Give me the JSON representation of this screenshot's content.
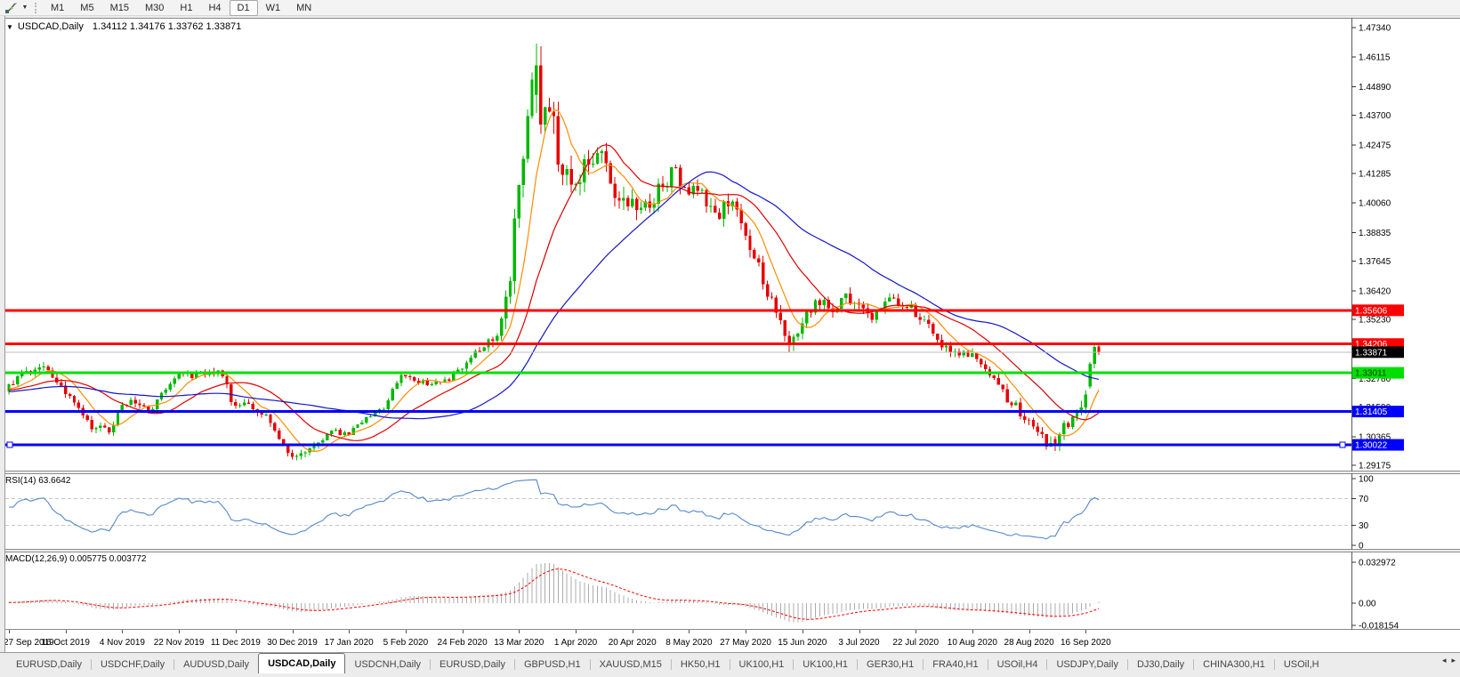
{
  "toolbar": {
    "timeframes": [
      {
        "label": "M1",
        "active": false
      },
      {
        "label": "M5",
        "active": false
      },
      {
        "label": "M15",
        "active": false
      },
      {
        "label": "M30",
        "active": false
      },
      {
        "label": "H1",
        "active": false
      },
      {
        "label": "H4",
        "active": false
      },
      {
        "label": "D1",
        "active": true
      },
      {
        "label": "W1",
        "active": false
      },
      {
        "label": "MN",
        "active": false
      }
    ]
  },
  "chart": {
    "title": "USDCAD,Daily",
    "ohlc": "1.34112 1.34176 1.33762 1.33871"
  },
  "price_axis": {
    "ticks": [
      "1.47340",
      "1.46115",
      "1.44890",
      "1.43700",
      "1.42475",
      "1.41285",
      "1.40060",
      "1.38835",
      "1.37645",
      "1.36420",
      "1.35230",
      "1.34005",
      "1.32780",
      "1.31590",
      "1.30365",
      "1.29175"
    ]
  },
  "levels": [
    {
      "name": "resistance-line-upper",
      "label": "1.35606",
      "value": 1.35606,
      "line_color": "#ff0000",
      "badge_bg": "#ff0000",
      "badge_fg": "#ffffff",
      "width": 3,
      "selected": false
    },
    {
      "name": "resistance-line-lower",
      "label": "1.34206",
      "value": 1.34206,
      "line_color": "#ff0000",
      "badge_bg": "#ff0000",
      "badge_fg": "#ffffff",
      "width": 3,
      "selected": false
    },
    {
      "name": "bid-price-line",
      "label": "1.33871",
      "value": 1.33871,
      "line_color": "#bdbdbd",
      "badge_bg": "#000000",
      "badge_fg": "#ffffff",
      "width": 1,
      "selected": false
    },
    {
      "name": "support-line-green",
      "label": "1.33011",
      "value": 1.33011,
      "line_color": "#00e000",
      "badge_bg": "#00e000",
      "badge_fg": "#003300",
      "width": 3,
      "selected": false
    },
    {
      "name": "support-line-mid",
      "label": "1.31405",
      "value": 1.31405,
      "line_color": "#0000ff",
      "badge_bg": "#0000ff",
      "badge_fg": "#ffffff",
      "width": 3,
      "selected": false
    },
    {
      "name": "support-line-low",
      "label": "1.30022",
      "value": 1.30022,
      "line_color": "#0000ff",
      "badge_bg": "#0000ff",
      "badge_fg": "#ffffff",
      "width": 3,
      "selected": true
    }
  ],
  "chart_data": {
    "type": "candlestick",
    "symbol": "USDCAD",
    "timeframe": "Daily",
    "y_axis": {
      "min": 1.29175,
      "max": 1.4734
    },
    "x_labels": [
      "27 Sep 2019",
      "16 Oct 2019",
      "4 Nov 2019",
      "22 Nov 2019",
      "11 Dec 2019",
      "30 Dec 2019",
      "17 Jan 2020",
      "5 Feb 2020",
      "24 Feb 2020",
      "13 Mar 2020",
      "1 Apr 2020",
      "20 Apr 2020",
      "8 May 2020",
      "27 May 2020",
      "15 Jun 2020",
      "3 Jul 2020",
      "22 Jul 2020",
      "10 Aug 2020",
      "28 Aug 2020",
      "16 Sep 2020"
    ],
    "bars_total": 251,
    "bars_per_label": 13,
    "current_bar": {
      "open": 1.34112,
      "high": 1.34176,
      "low": 1.33762,
      "close": 1.33871
    },
    "spike": {
      "bar": 121,
      "high": 1.4668
    },
    "trough": {
      "bar": 239,
      "low": 1.2994
    },
    "price_anchors": [
      [
        0,
        1.3235
      ],
      [
        4,
        1.329
      ],
      [
        8,
        1.332
      ],
      [
        13,
        1.324
      ],
      [
        17,
        1.313
      ],
      [
        20,
        1.307
      ],
      [
        24,
        1.3055
      ],
      [
        26,
        1.315
      ],
      [
        30,
        1.3185
      ],
      [
        33,
        1.3155
      ],
      [
        37,
        1.325
      ],
      [
        39,
        1.33
      ],
      [
        43,
        1.329
      ],
      [
        46,
        1.3295
      ],
      [
        49,
        1.33
      ],
      [
        52,
        1.318
      ],
      [
        56,
        1.3165
      ],
      [
        60,
        1.311
      ],
      [
        65,
        1.296
      ],
      [
        69,
        1.2985
      ],
      [
        72,
        1.3025
      ],
      [
        75,
        1.306
      ],
      [
        78,
        1.305
      ],
      [
        82,
        1.311
      ],
      [
        86,
        1.315
      ],
      [
        91,
        1.329
      ],
      [
        95,
        1.326
      ],
      [
        99,
        1.325
      ],
      [
        104,
        1.331
      ],
      [
        108,
        1.339
      ],
      [
        112,
        1.342
      ],
      [
        115,
        1.365
      ],
      [
        117,
        1.395
      ],
      [
        119,
        1.43
      ],
      [
        121,
        1.456
      ],
      [
        123,
        1.43
      ],
      [
        125,
        1.442
      ],
      [
        127,
        1.417
      ],
      [
        130,
        1.409
      ],
      [
        133,
        1.418
      ],
      [
        136,
        1.425
      ],
      [
        139,
        1.406
      ],
      [
        143,
        1.402
      ],
      [
        147,
        1.398
      ],
      [
        150,
        1.408
      ],
      [
        153,
        1.413
      ],
      [
        156,
        1.407
      ],
      [
        160,
        1.403
      ],
      [
        163,
        1.395
      ],
      [
        166,
        1.401
      ],
      [
        169,
        1.39
      ],
      [
        172,
        1.378
      ],
      [
        175,
        1.36
      ],
      [
        178,
        1.35
      ],
      [
        180,
        1.342
      ],
      [
        182,
        1.345
      ],
      [
        184,
        1.356
      ],
      [
        186,
        1.362
      ],
      [
        189,
        1.355
      ],
      [
        192,
        1.361
      ],
      [
        195,
        1.358
      ],
      [
        199,
        1.354
      ],
      [
        203,
        1.361
      ],
      [
        206,
        1.358
      ],
      [
        208,
        1.356
      ],
      [
        211,
        1.35
      ],
      [
        214,
        1.342
      ],
      [
        217,
        1.34
      ],
      [
        221,
        1.338
      ],
      [
        224,
        1.333
      ],
      [
        227,
        1.326
      ],
      [
        230,
        1.319
      ],
      [
        234,
        1.312
      ],
      [
        237,
        1.306
      ],
      [
        239,
        1.3005
      ],
      [
        241,
        1.303
      ],
      [
        243,
        1.309
      ],
      [
        245,
        1.313
      ],
      [
        247,
        1.317
      ],
      [
        249,
        1.323
      ],
      [
        250,
        1.3387
      ]
    ],
    "volatility_anchors": [
      [
        0,
        0.003
      ],
      [
        20,
        0.0032
      ],
      [
        40,
        0.0025
      ],
      [
        52,
        0.0028
      ],
      [
        65,
        0.003
      ],
      [
        78,
        0.0022
      ],
      [
        91,
        0.0022
      ],
      [
        104,
        0.0028
      ],
      [
        112,
        0.006
      ],
      [
        117,
        0.011
      ],
      [
        121,
        0.016
      ],
      [
        126,
        0.013
      ],
      [
        132,
        0.0095
      ],
      [
        140,
        0.0075
      ],
      [
        150,
        0.006
      ],
      [
        160,
        0.0055
      ],
      [
        170,
        0.006
      ],
      [
        180,
        0.0055
      ],
      [
        190,
        0.0045
      ],
      [
        200,
        0.004
      ],
      [
        210,
        0.0035
      ],
      [
        220,
        0.0035
      ],
      [
        232,
        0.004
      ],
      [
        241,
        0.0045
      ],
      [
        250,
        0.0045
      ]
    ],
    "up_color": "#00b800",
    "down_color": "#e60000",
    "moving_averages": [
      {
        "name": "ma-fast-line",
        "period": 8,
        "color": "#ff8c00"
      },
      {
        "name": "ma-mid-line",
        "period": 20,
        "color": "#dd0000"
      },
      {
        "name": "ma-slow-line",
        "period": 45,
        "color": "#1414cc"
      }
    ]
  },
  "rsi": {
    "label": "RSI(14) 63.6642",
    "period": 14,
    "value": 63.6642,
    "line_color": "#5588cc",
    "axis_ticks": [
      "100",
      "70",
      "30",
      "0"
    ],
    "levels": [
      70,
      30
    ]
  },
  "macd": {
    "label": "MACD(12,26,9) 0.005775 0.003772",
    "params": [
      12,
      26,
      9
    ],
    "main_value": 0.005775,
    "signal_value": 0.003772,
    "axis_ticks": [
      "0.032972",
      "0.00",
      "-0.018154"
    ],
    "axis_max": 0.032972,
    "axis_min": -0.018154,
    "histogram_color": "#ababab",
    "signal_color": "#ff0000"
  },
  "tabs": {
    "items": [
      {
        "label": "EURUSD,Daily",
        "active": false
      },
      {
        "label": "USDCHF,Daily",
        "active": false
      },
      {
        "label": "AUDUSD,Daily",
        "active": false
      },
      {
        "label": "USDCAD,Daily",
        "active": true
      },
      {
        "label": "USDCNH,Daily",
        "active": false
      },
      {
        "label": "EURUSD,Daily",
        "active": false
      },
      {
        "label": "GBPUSD,H1",
        "active": false
      },
      {
        "label": "XAUUSD,M15",
        "active": false
      },
      {
        "label": "HK50,H1",
        "active": false
      },
      {
        "label": "UK100,H1",
        "active": false
      },
      {
        "label": "UK100,H1",
        "active": false
      },
      {
        "label": "GER30,H1",
        "active": false
      },
      {
        "label": "FRA40,H1",
        "active": false
      },
      {
        "label": "USOil,H4",
        "active": false
      },
      {
        "label": "USDJPY,Daily",
        "active": false
      },
      {
        "label": "DJ30,Daily",
        "active": false
      },
      {
        "label": "CHINA300,H1",
        "active": false
      },
      {
        "label": "USOil,H",
        "active": false
      }
    ]
  }
}
